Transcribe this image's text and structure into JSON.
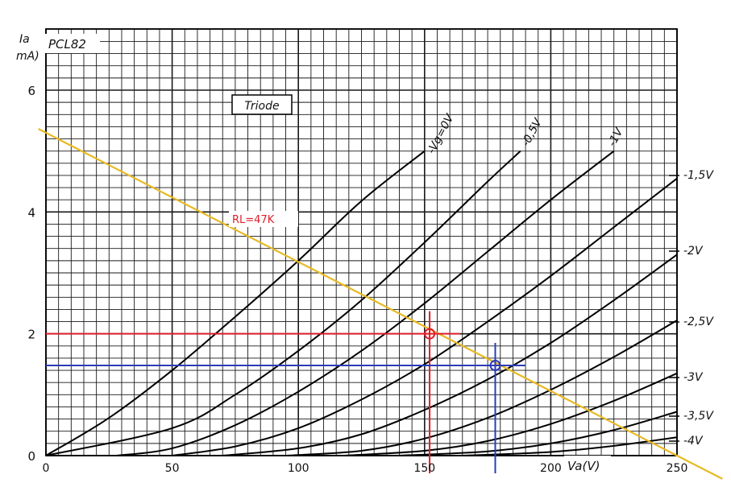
{
  "chart_data": {
    "type": "line",
    "title": "PCL82",
    "subtitle": "Triode",
    "ylabel_line1": "Ia",
    "ylabel_line2": "mA)",
    "xlabel": "Va(V)",
    "xlim": [
      0,
      250
    ],
    "ylim": [
      0,
      7
    ],
    "x_ticks": [
      0,
      50,
      100,
      150,
      200,
      250
    ],
    "y_ticks": [
      0,
      2,
      4,
      6
    ],
    "grid": true,
    "series": [
      {
        "name": "-Vg=0V",
        "label": "-Vg=0V",
        "x": [
          0,
          25,
          50,
          75,
          100,
          125,
          150
        ],
        "y": [
          0,
          0.62,
          1.4,
          2.28,
          3.2,
          4.18,
          5.0
        ]
      },
      {
        "name": "-0,5V",
        "label": "-0,5V",
        "x": [
          0,
          50,
          75,
          100,
          125,
          150,
          175,
          188
        ],
        "y": [
          0,
          0.45,
          1.0,
          1.72,
          2.55,
          3.5,
          4.5,
          5.0
        ]
      },
      {
        "name": "-1V",
        "label": "-1V",
        "x": [
          28,
          50,
          75,
          100,
          125,
          150,
          175,
          200,
          225
        ],
        "y": [
          0,
          0.12,
          0.5,
          1.05,
          1.72,
          2.5,
          3.35,
          4.2,
          5.0
        ]
      },
      {
        "name": "-1,5V",
        "label": "-1,5V",
        "x": [
          50,
          75,
          100,
          125,
          150,
          175,
          200,
          225,
          250
        ],
        "y": [
          0,
          0.15,
          0.45,
          0.92,
          1.5,
          2.2,
          2.95,
          3.75,
          4.55
        ]
      },
      {
        "name": "-2V",
        "label": "-2V",
        "x": [
          70,
          100,
          125,
          150,
          175,
          200,
          225,
          250
        ],
        "y": [
          0,
          0.12,
          0.35,
          0.75,
          1.25,
          1.85,
          2.55,
          3.3
        ]
      },
      {
        "name": "-2,5V",
        "label": "-2,5V",
        "x": [
          95,
          125,
          150,
          175,
          200,
          225,
          250
        ],
        "y": [
          0,
          0.08,
          0.28,
          0.62,
          1.08,
          1.62,
          2.22
        ]
      },
      {
        "name": "-3V",
        "label": "-3V",
        "x": [
          118,
          150,
          175,
          200,
          225,
          250
        ],
        "y": [
          0,
          0.08,
          0.24,
          0.52,
          0.9,
          1.35
        ]
      },
      {
        "name": "-3,5V",
        "label": "-3,5V",
        "x": [
          140,
          175,
          200,
          225,
          250
        ],
        "y": [
          0,
          0.07,
          0.2,
          0.42,
          0.72
        ]
      },
      {
        "name": "-4V",
        "label": "-4V",
        "x": [
          165,
          200,
          225,
          250
        ],
        "y": [
          0,
          0.06,
          0.16,
          0.3
        ]
      }
    ],
    "load_line": {
      "label": "RL=47K",
      "color": "#e8b923",
      "x": [
        0,
        250
      ],
      "y": [
        5.3,
        0
      ]
    },
    "markers": [
      {
        "x": 152,
        "y": 2.0,
        "color": "#dd1f2a"
      },
      {
        "x": 178,
        "y": 1.48,
        "color": "#2a3cb8"
      }
    ]
  },
  "colors": {
    "grid": "#1a1a1a",
    "curves": "#000000",
    "red": "#dd1f2a",
    "blue": "#2a3cb8",
    "load": "#e8b923"
  }
}
